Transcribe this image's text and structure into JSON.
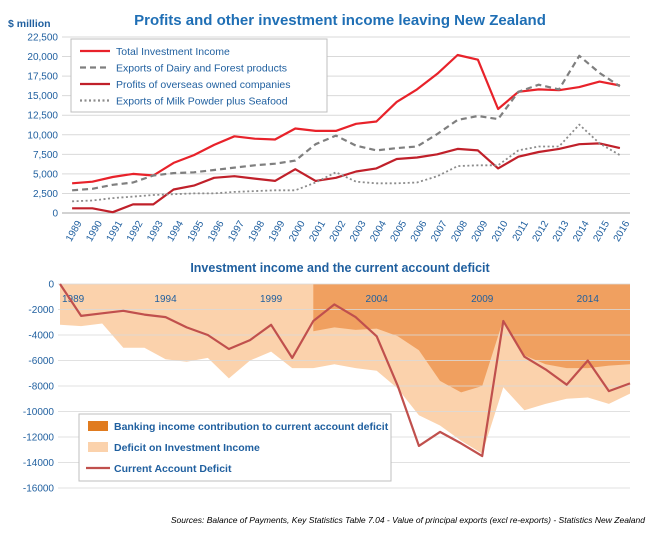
{
  "chart_data": [
    {
      "type": "line",
      "title": "Profits and other investment income leaving New Zealand",
      "ylabel": "$ million",
      "ylim": [
        0,
        22500
      ],
      "yticks": [
        "22,500",
        "20,000",
        "17,500",
        "15,000",
        "12,500",
        "10,000",
        "7,500",
        "5,000",
        "2,500",
        "0"
      ],
      "ytick_values": [
        22500,
        20000,
        17500,
        15000,
        12500,
        10000,
        7500,
        5000,
        2500,
        0
      ],
      "x": [
        "1989",
        "1990",
        "1991",
        "1992",
        "1993",
        "1994",
        "1995",
        "1996",
        "1997",
        "1998",
        "1999",
        "2000",
        "2001",
        "2002",
        "2003",
        "2004",
        "2005",
        "2006",
        "2007",
        "2008",
        "2009",
        "2010",
        "2011",
        "2012",
        "2013",
        "2014",
        "2015",
        "2016"
      ],
      "grid": true,
      "legend_placement": "top-left",
      "series": [
        {
          "name": "Total Investment Income",
          "color": "#e8222a",
          "style": "solid",
          "values": [
            3800,
            4000,
            4600,
            5000,
            4800,
            6400,
            7400,
            8700,
            9800,
            9500,
            9400,
            10800,
            10500,
            10500,
            11400,
            11700,
            14200,
            15800,
            17800,
            20200,
            19600,
            13300,
            15500,
            15800,
            15700,
            16100,
            16800,
            16300
          ]
        },
        {
          "name": "Exports of Dairy and Forest products",
          "color": "#7f7f7f",
          "style": "dashed",
          "values": [
            2900,
            3100,
            3600,
            3900,
            4800,
            5100,
            5200,
            5500,
            5800,
            6100,
            6300,
            6700,
            8800,
            9900,
            8600,
            8000,
            8300,
            8500,
            10100,
            11900,
            12400,
            12000,
            15500,
            16400,
            15800,
            20100,
            17900,
            16200
          ]
        },
        {
          "name": "Profits of overseas owned companies",
          "color": "#c0202a",
          "style": "solid",
          "values": [
            600,
            600,
            100,
            1100,
            1100,
            3000,
            3500,
            4500,
            4700,
            4400,
            4100,
            5600,
            4100,
            4500,
            5300,
            5700,
            6900,
            7100,
            7500,
            8200,
            8000,
            5700,
            7200,
            7800,
            8200,
            8800,
            8900,
            8300
          ]
        },
        {
          "name": "Exports of Milk Powder plus Seafood",
          "color": "#8c8c8c",
          "style": "dotted",
          "values": [
            1500,
            1600,
            1900,
            2100,
            2300,
            2400,
            2500,
            2500,
            2700,
            2800,
            2900,
            2900,
            3900,
            5200,
            4000,
            3800,
            3800,
            3900,
            4700,
            6000,
            6100,
            6100,
            8000,
            8500,
            8500,
            11300,
            8900,
            7400
          ]
        }
      ]
    },
    {
      "type": "area",
      "title": "Investment income and the current account deficit",
      "ylim": [
        -16000,
        0
      ],
      "yticks": [
        "0",
        "-2000",
        "-4000",
        "-6000",
        "-8000",
        "-10000",
        "-12000",
        "-14000",
        "-16000"
      ],
      "ytick_values": [
        0,
        -2000,
        -4000,
        -6000,
        -8000,
        -10000,
        -12000,
        -14000,
        -16000
      ],
      "x_year_labels": [
        "1989",
        "1994",
        "1999",
        "2004",
        "2009",
        "2014"
      ],
      "x": [
        "1989",
        "1990",
        "1991",
        "1992",
        "1993",
        "1994",
        "1995",
        "1996",
        "1997",
        "1998",
        "1999",
        "2000",
        "2001",
        "2002",
        "2003",
        "2004",
        "2005",
        "2006",
        "2007",
        "2008",
        "2009",
        "2010",
        "2011",
        "2012",
        "2013",
        "2014",
        "2015",
        "2016"
      ],
      "grid": true,
      "legend_placement": "bottom-left",
      "series": [
        {
          "name": "Banking income contribution to current account deficit",
          "color": "#f0a060",
          "type": "area",
          "values": [
            null,
            null,
            null,
            null,
            null,
            null,
            null,
            null,
            null,
            null,
            null,
            null,
            -3700,
            -3400,
            -3600,
            -3500,
            -4100,
            -5200,
            -7600,
            -8500,
            -8000,
            -2800,
            -5600,
            -6300,
            -6600,
            -6600,
            -6400,
            -6300
          ]
        },
        {
          "name": "Deficit on Investment Income",
          "color": "#fbd2ac",
          "type": "area",
          "values": [
            -3200,
            -3300,
            -3100,
            -5000,
            -5000,
            -5900,
            -6100,
            -5800,
            -7400,
            -6000,
            -5300,
            -6600,
            -6600,
            -6300,
            -6600,
            -6800,
            -8200,
            -10300,
            -11100,
            -12300,
            -13300,
            -8100,
            -9900,
            -9400,
            -9000,
            -8900,
            -9400,
            -8600
          ]
        },
        {
          "name": "Current Account Deficit",
          "color": "#c0504d",
          "type": "line",
          "values": [
            0,
            -2500,
            -2300,
            -2100,
            -2400,
            -2600,
            -3400,
            -4000,
            -5100,
            -4400,
            -3200,
            -5800,
            -2900,
            -1600,
            -2600,
            -4100,
            -8000,
            -12700,
            -11600,
            -12500,
            -13500,
            -2900,
            -5700,
            -6700,
            -7900,
            -6000,
            -8400,
            -7800
          ]
        }
      ]
    }
  ],
  "source_note": "Sources: Balance of Payments, Key Statistics Table 7.04 - Value of principal exports (excl re-exports) - Statistics New Zealand"
}
